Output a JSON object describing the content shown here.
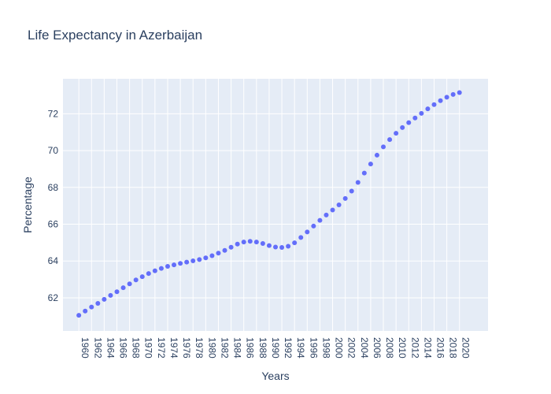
{
  "chart_data": {
    "type": "scatter",
    "title": "Life Expectancy in Azerbaijan",
    "xlabel": "Years",
    "ylabel": "Percentage",
    "xlim": [
      1957.5,
      2024.5
    ],
    "ylim": [
      60.2,
      73.9
    ],
    "x_tick_labels": [
      "1960",
      "1962",
      "1964",
      "1966",
      "1968",
      "1970",
      "1972",
      "1974",
      "1976",
      "1978",
      "1980",
      "1982",
      "1984",
      "1986",
      "1988",
      "1990",
      "1992",
      "1994",
      "1996",
      "1998",
      "2000",
      "2002",
      "2004",
      "2006",
      "2008",
      "2010",
      "2012",
      "2014",
      "2016",
      "2018",
      "2020"
    ],
    "y_tick_labels": [
      "62",
      "64",
      "66",
      "68",
      "70",
      "72"
    ],
    "grid": true,
    "colors": {
      "marker": "#636efa",
      "plot_bg": "#e5ecf6",
      "grid": "#ffffff",
      "text": "#2a3f5f"
    },
    "x": [
      1960,
      1961,
      1962,
      1963,
      1964,
      1965,
      1966,
      1967,
      1968,
      1969,
      1970,
      1971,
      1972,
      1973,
      1974,
      1975,
      1976,
      1977,
      1978,
      1979,
      1980,
      1981,
      1982,
      1983,
      1984,
      1985,
      1986,
      1987,
      1988,
      1989,
      1990,
      1991,
      1992,
      1993,
      1994,
      1995,
      1996,
      1997,
      1998,
      1999,
      2000,
      2001,
      2002,
      2003,
      2004,
      2005,
      2006,
      2007,
      2008,
      2009,
      2010,
      2011,
      2012,
      2013,
      2014,
      2015,
      2016,
      2017,
      2018,
      2019,
      2020
    ],
    "y": [
      61.05,
      61.28,
      61.5,
      61.7,
      61.92,
      62.13,
      62.33,
      62.55,
      62.76,
      62.97,
      63.15,
      63.32,
      63.47,
      63.6,
      63.71,
      63.79,
      63.87,
      63.94,
      64.01,
      64.08,
      64.17,
      64.29,
      64.43,
      64.58,
      64.75,
      64.92,
      65.03,
      65.07,
      65.03,
      64.95,
      64.84,
      64.76,
      64.74,
      64.8,
      64.99,
      65.28,
      65.58,
      65.9,
      66.21,
      66.5,
      66.77,
      67.05,
      67.4,
      67.8,
      68.27,
      68.78,
      69.27,
      69.75,
      70.2,
      70.6,
      70.94,
      71.25,
      71.52,
      71.77,
      72.02,
      72.27,
      72.5,
      72.71,
      72.9,
      73.05,
      73.15
    ]
  }
}
